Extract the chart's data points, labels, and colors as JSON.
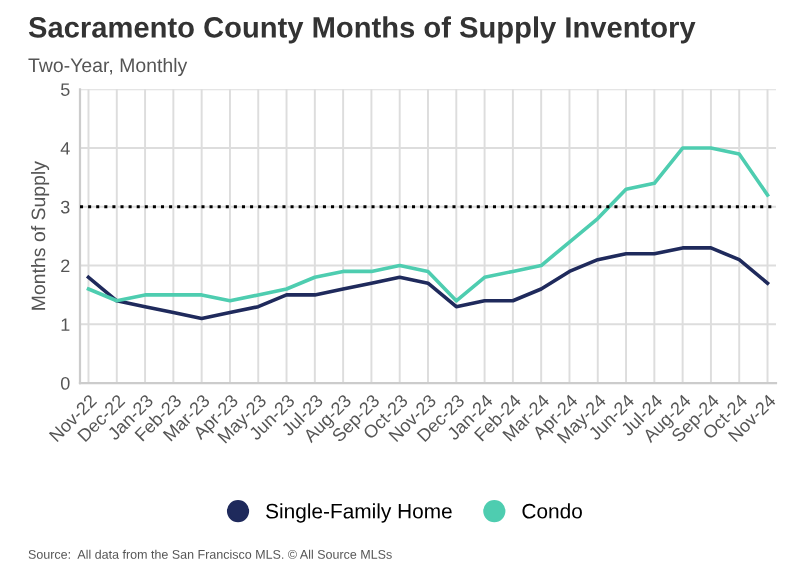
{
  "chart_data": {
    "type": "line",
    "title": "Sacramento County Months of Supply Inventory",
    "subtitle": "Two-Year, Monthly",
    "ylabel": "Months of Supply",
    "categories": [
      "Nov-22",
      "Dec-22",
      "Jan-23",
      "Feb-23",
      "Mar-23",
      "Apr-23",
      "May-23",
      "Jun-23",
      "Jul-23",
      "Aug-23",
      "Sep-23",
      "Oct-23",
      "Nov-23",
      "Dec-23",
      "Jan-24",
      "Feb-24",
      "Mar-24",
      "Apr-24",
      "May-24",
      "Jun-24",
      "Jul-24",
      "Aug-24",
      "Sep-24",
      "Oct-24",
      "Nov-24"
    ],
    "series": [
      {
        "name": "Single-Family Home",
        "color": "#1f2a5c",
        "values": [
          1.8,
          1.4,
          1.3,
          1.2,
          1.1,
          1.2,
          1.3,
          1.5,
          1.5,
          1.6,
          1.7,
          1.8,
          1.7,
          1.3,
          1.4,
          1.4,
          1.6,
          1.9,
          2.1,
          2.2,
          2.2,
          2.3,
          2.3,
          2.1,
          1.7
        ]
      },
      {
        "name": "Condo",
        "color": "#4ecdb0",
        "values": [
          1.6,
          1.4,
          1.5,
          1.5,
          1.5,
          1.4,
          1.5,
          1.6,
          1.8,
          1.9,
          1.9,
          2.0,
          1.9,
          1.4,
          1.8,
          1.9,
          2.0,
          2.4,
          2.8,
          3.3,
          3.4,
          4.0,
          4.0,
          3.9,
          3.2
        ]
      }
    ],
    "ylim": [
      0,
      5
    ],
    "yticks": [
      0,
      1,
      2,
      3,
      4,
      5
    ],
    "grid": true,
    "legend": "bottom",
    "marker": "none",
    "line_style": "solid",
    "ref_lines": [
      {
        "axis": "y",
        "value": 3,
        "color": "#000000",
        "line_style": "dotted"
      }
    ],
    "annotations": [
      "Source:  All data from the San Francisco MLS. © All Source MLSs"
    ]
  }
}
